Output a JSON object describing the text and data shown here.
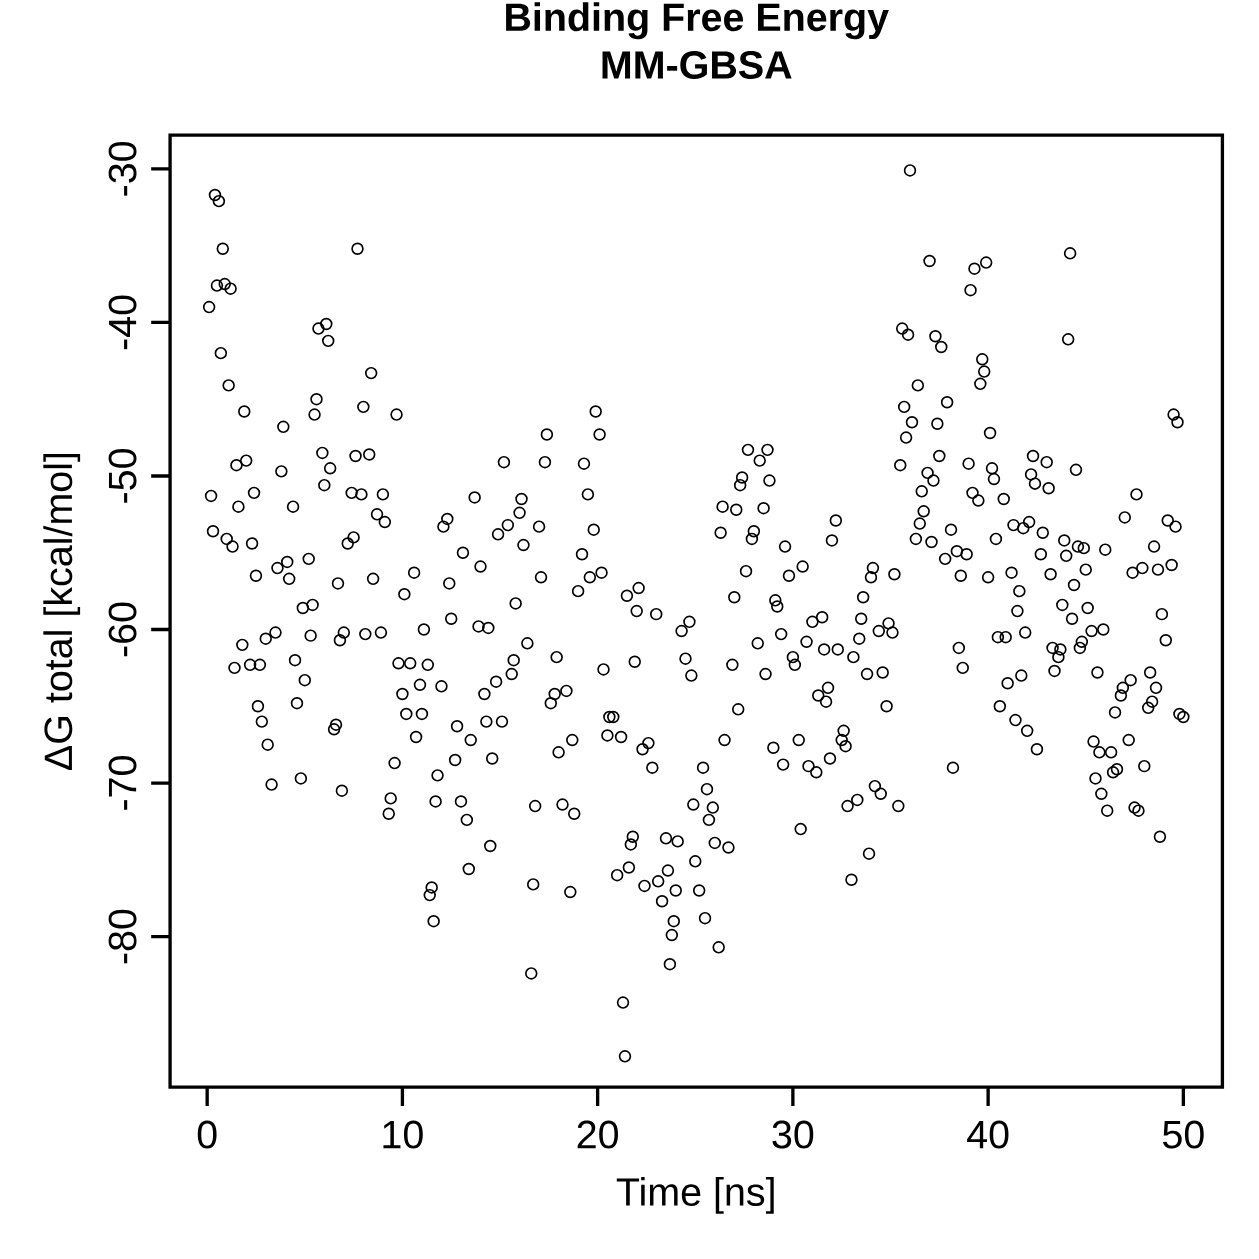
{
  "chart_data": {
    "type": "scatter",
    "title": "Binding Free Energy",
    "subtitle": "MM-GBSA",
    "xlabel": "Time [ns]",
    "ylabel": "ΔG total [kcal/mol]",
    "marker": "circle",
    "grid": false,
    "xlim": [
      -1.9,
      52.0
    ],
    "ylim": [
      -89.8,
      -27.8
    ],
    "xticks": [
      0,
      10,
      20,
      30,
      40,
      50
    ],
    "yticks": [
      -80,
      -70,
      -60,
      -50,
      -40,
      -30
    ],
    "series": [
      {
        "color": "#000000",
        "x": [
          0.1,
          0.2,
          0.3,
          0.4,
          0.5,
          0.6,
          0.7,
          0.8,
          0.9,
          1.0,
          1.1,
          1.2,
          1.3,
          1.4,
          1.5,
          1.6,
          1.8,
          1.9,
          2.0,
          2.2,
          2.3,
          2.4,
          2.5,
          2.6,
          2.7,
          2.8,
          3.0,
          3.1,
          3.3,
          3.5,
          3.6,
          3.8,
          3.9,
          4.1,
          4.2,
          4.4,
          4.5,
          4.6,
          4.8,
          4.9,
          5.0,
          5.2,
          5.3,
          5.4,
          5.5,
          5.6,
          5.7,
          5.9,
          6.0,
          6.1,
          6.2,
          6.3,
          6.5,
          6.6,
          6.7,
          6.8,
          6.9,
          7.0,
          7.2,
          7.4,
          7.5,
          7.6,
          7.7,
          7.9,
          8.0,
          8.1,
          8.3,
          8.4,
          8.5,
          8.7,
          8.9,
          9.0,
          9.1,
          9.3,
          9.4,
          9.6,
          9.7,
          9.8,
          10.0,
          10.1,
          10.2,
          10.4,
          10.6,
          10.7,
          10.9,
          11.0,
          11.1,
          11.3,
          11.4,
          11.5,
          11.6,
          11.7,
          11.8,
          12.0,
          12.1,
          12.3,
          12.4,
          12.5,
          12.7,
          12.8,
          13.0,
          13.1,
          13.3,
          13.4,
          13.5,
          13.7,
          13.9,
          14.0,
          14.2,
          14.3,
          14.4,
          14.5,
          14.6,
          14.8,
          14.9,
          15.1,
          15.2,
          15.4,
          15.6,
          15.7,
          15.8,
          16.0,
          16.1,
          16.2,
          16.4,
          16.6,
          16.7,
          16.8,
          17.0,
          17.1,
          17.3,
          17.4,
          17.6,
          17.8,
          17.9,
          18.0,
          18.2,
          18.4,
          18.6,
          18.7,
          18.8,
          19.0,
          19.2,
          19.3,
          19.5,
          19.6,
          19.8,
          19.9,
          20.1,
          20.2,
          20.3,
          20.5,
          20.6,
          20.8,
          21.0,
          21.2,
          21.3,
          21.4,
          21.5,
          21.6,
          21.7,
          21.8,
          21.9,
          22.0,
          22.1,
          22.3,
          22.4,
          22.6,
          22.8,
          23.0,
          23.1,
          23.3,
          23.5,
          23.6,
          23.7,
          23.8,
          23.9,
          24.0,
          24.1,
          24.3,
          24.5,
          24.7,
          24.8,
          24.9,
          25.0,
          25.2,
          25.4,
          25.5,
          25.6,
          25.7,
          25.9,
          26.0,
          26.2,
          26.3,
          26.4,
          26.5,
          26.7,
          26.9,
          27.0,
          27.1,
          27.2,
          27.3,
          27.4,
          27.6,
          27.7,
          27.9,
          28.0,
          28.2,
          28.3,
          28.5,
          28.6,
          28.7,
          28.8,
          29.0,
          29.1,
          29.2,
          29.4,
          29.5,
          29.6,
          29.8,
          30.0,
          30.1,
          30.3,
          30.4,
          30.5,
          30.7,
          30.8,
          31.0,
          31.2,
          31.3,
          31.5,
          31.6,
          31.7,
          31.8,
          31.9,
          32.0,
          32.2,
          32.3,
          32.5,
          32.6,
          32.7,
          32.8,
          33.0,
          33.1,
          33.3,
          33.4,
          33.5,
          33.6,
          33.8,
          33.9,
          34.0,
          34.1,
          34.2,
          34.4,
          34.5,
          34.6,
          34.8,
          34.9,
          35.1,
          35.2,
          35.4,
          35.5,
          35.6,
          35.7,
          35.8,
          35.9,
          36.0,
          36.1,
          36.3,
          36.4,
          36.5,
          36.6,
          36.7,
          36.9,
          37.0,
          37.1,
          37.2,
          37.3,
          37.4,
          37.5,
          37.6,
          37.8,
          37.9,
          38.1,
          38.2,
          38.4,
          38.5,
          38.6,
          38.7,
          38.9,
          39.0,
          39.1,
          39.2,
          39.3,
          39.5,
          39.6,
          39.7,
          39.8,
          39.9,
          40.0,
          40.1,
          40.2,
          40.3,
          40.4,
          40.5,
          40.6,
          40.8,
          40.9,
          41.0,
          41.2,
          41.3,
          41.4,
          41.5,
          41.6,
          41.7,
          41.8,
          41.9,
          42.0,
          42.1,
          42.2,
          42.3,
          42.4,
          42.5,
          42.7,
          42.8,
          43.0,
          43.1,
          43.2,
          43.3,
          43.4,
          43.6,
          43.7,
          43.8,
          43.9,
          44.0,
          44.1,
          44.2,
          44.3,
          44.4,
          44.5,
          44.6,
          44.7,
          44.8,
          44.9,
          45.0,
          45.1,
          45.3,
          45.4,
          45.5,
          45.6,
          45.7,
          45.8,
          45.9,
          46.0,
          46.1,
          46.3,
          46.4,
          46.5,
          46.6,
          46.8,
          46.9,
          47.0,
          47.2,
          47.3,
          47.4,
          47.5,
          47.6,
          47.7,
          47.9,
          48.0,
          48.2,
          48.3,
          48.4,
          48.5,
          48.6,
          48.7,
          48.8,
          48.9,
          49.1,
          49.2,
          49.4,
          49.5,
          49.6,
          49.7,
          49.8,
          50.0
        ],
        "values": [
          -39,
          -51.3,
          -53.6,
          -31.7,
          -37.6,
          -32.1,
          -42,
          -35.2,
          -37.5,
          -54.1,
          -44.1,
          -37.8,
          -54.6,
          -62.5,
          -49.3,
          -52,
          -61,
          -45.8,
          -49,
          -62.3,
          -54.4,
          -51.1,
          -56.5,
          -65,
          -62.3,
          -66,
          -60.6,
          -67.5,
          -70.1,
          -60.2,
          -56,
          -49.7,
          -46.8,
          -55.6,
          -56.7,
          -52,
          -62,
          -64.8,
          -69.7,
          -58.6,
          -63.3,
          -55.4,
          -60.4,
          -58.4,
          -46,
          -45,
          -40.4,
          -48.5,
          -50.6,
          -40.1,
          -41.2,
          -49.5,
          -66.5,
          -66.2,
          -57,
          -60.7,
          -70.5,
          -60.2,
          -54.4,
          -51.1,
          -54,
          -48.7,
          -35.2,
          -51.2,
          -45.5,
          -60.3,
          -48.6,
          -43.3,
          -56.7,
          -52.5,
          -60.2,
          -51.2,
          -53,
          -72,
          -71,
          -68.7,
          -46,
          -62.2,
          -64.2,
          -57.7,
          -65.5,
          -62.2,
          -56.3,
          -67,
          -63.6,
          -65.5,
          -60,
          -62.3,
          -77.3,
          -76.8,
          -79,
          -71.2,
          -69.5,
          -63.7,
          -53.3,
          -52.8,
          -57,
          -59.3,
          -68.5,
          -66.3,
          -71.2,
          -55,
          -72.4,
          -75.6,
          -67.2,
          -51.4,
          -59.8,
          -55.9,
          -64.2,
          -66,
          -59.9,
          -74.1,
          -68.4,
          -63.4,
          -53.8,
          -66,
          -49.1,
          -53.2,
          -62.9,
          -62,
          -58.3,
          -52.4,
          -51.5,
          -54.5,
          -60.9,
          -82.4,
          -76.6,
          -71.5,
          -53.3,
          -56.6,
          -49.1,
          -47.3,
          -64.8,
          -64.2,
          -61.8,
          -68,
          -71.4,
          -64,
          -77.1,
          -67.2,
          -72,
          -57.5,
          -55.1,
          -49.2,
          -51.2,
          -56.6,
          -53.5,
          -45.8,
          -47.3,
          -56.3,
          -62.6,
          -66.9,
          -65.7,
          -65.7,
          -76,
          -67,
          -84.3,
          -87.8,
          -57.8,
          -75.5,
          -74,
          -73.5,
          -62.1,
          -58.8,
          -57.3,
          -67.8,
          -76.7,
          -67.4,
          -69,
          -59,
          -76.4,
          -77.7,
          -73.6,
          -75.7,
          -81.8,
          -79.9,
          -79,
          -77,
          -73.8,
          -60.1,
          -61.9,
          -59.5,
          -63,
          -71.4,
          -75.1,
          -77,
          -69,
          -78.8,
          -70.4,
          -72.4,
          -71.6,
          -73.9,
          -80.7,
          -53.7,
          -52,
          -67.2,
          -74.2,
          -62.3,
          -57.9,
          -52.2,
          -65.2,
          -50.6,
          -50.1,
          -56.2,
          -48.3,
          -54.1,
          -53.6,
          -60.9,
          -49,
          -52.1,
          -62.9,
          -48.3,
          -50.3,
          -67.7,
          -58.1,
          -58.5,
          -60.3,
          -68.8,
          -54.6,
          -56.5,
          -61.8,
          -62.3,
          -67.2,
          -73,
          -55.9,
          -60.8,
          -68.9,
          -59.5,
          -69.3,
          -64.3,
          -59.2,
          -61.3,
          -64.7,
          -63.8,
          -68.4,
          -54.2,
          -52.9,
          -61.3,
          -67.2,
          -66.6,
          -67.6,
          -71.5,
          -76.3,
          -61.8,
          -71.1,
          -60.6,
          -59.3,
          -57.9,
          -62.9,
          -74.6,
          -56.6,
          -56,
          -70.2,
          -60.1,
          -70.7,
          -62.8,
          -65,
          -59.6,
          -60.2,
          -56.4,
          -71.5,
          -49.3,
          -40.4,
          -45.5,
          -47.5,
          -40.8,
          -30.1,
          -46.5,
          -54.1,
          -44.1,
          -53.1,
          -51,
          -52.3,
          -49.8,
          -36,
          -54.3,
          -50.3,
          -40.9,
          -46.6,
          -48.7,
          -41.6,
          -55.4,
          -45.2,
          -53.5,
          -69,
          -54.9,
          -61.2,
          -56.5,
          -62.5,
          -55.1,
          -49.2,
          -37.9,
          -51.1,
          -36.5,
          -51.6,
          -44,
          -42.4,
          -43.2,
          -36.1,
          -56.6,
          -47.2,
          -49.5,
          -50.2,
          -54.1,
          -60.5,
          -65,
          -51.5,
          -60.5,
          -63.5,
          -56.3,
          -53.2,
          -65.9,
          -58.8,
          -57.5,
          -63,
          -53.4,
          -60.2,
          -66.6,
          -53,
          -49.9,
          -48.7,
          -50.5,
          -67.8,
          -55.1,
          -53.7,
          -49.1,
          -50.8,
          -56.4,
          -61.2,
          -62.7,
          -61.8,
          -61.3,
          -58.4,
          -54.2,
          -55.2,
          -41.1,
          -35.5,
          -59.3,
          -57.1,
          -49.6,
          -54.6,
          -61.2,
          -60.8,
          -54.7,
          -56.1,
          -58.6,
          -60.1,
          -67.3,
          -69.7,
          -62.8,
          -68,
          -70.7,
          -60,
          -54.8,
          -71.8,
          -68,
          -69.3,
          -65.4,
          -69.1,
          -64.3,
          -63.8,
          -52.7,
          -67.2,
          -63.3,
          -56.3,
          -71.6,
          -51.2,
          -71.8,
          -56,
          -68.9,
          -65.1,
          -62.8,
          -64.7,
          -54.6,
          -63.8,
          -56.1,
          -73.5,
          -59,
          -60.7,
          -52.9,
          -55.8,
          -46,
          -53.3,
          -46.5,
          -65.5,
          -65.7
        ]
      }
    ]
  }
}
